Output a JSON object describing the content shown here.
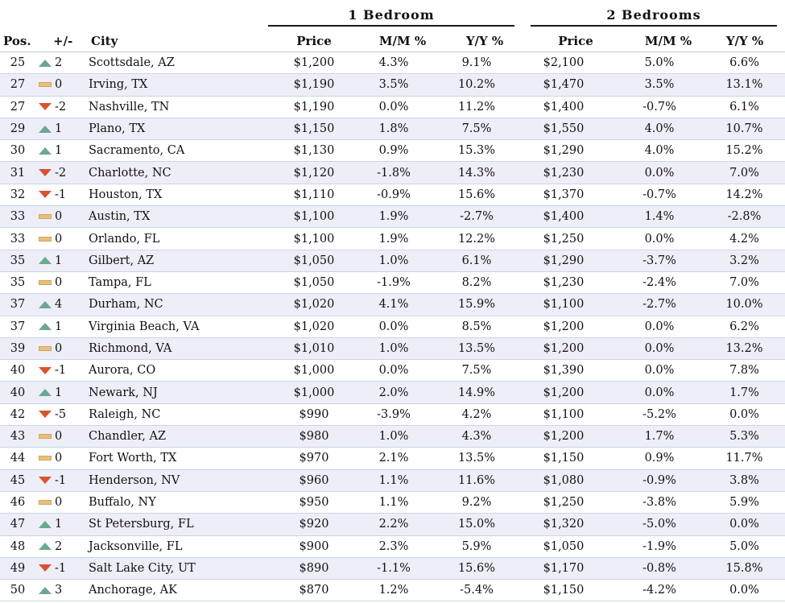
{
  "groups": {
    "one_bedroom": "1 Bedroom",
    "two_bedrooms": "2 Bedrooms"
  },
  "headers": {
    "pos": "Pos.",
    "change": "+/-",
    "city": "City",
    "price1": "Price",
    "mm1": "M/M %",
    "yy1": "Y/Y %",
    "price2": "Price",
    "mm2": "M/M %",
    "yy2": "Y/Y %"
  },
  "colors": {
    "up": "#6aa88f",
    "down": "#d9532f",
    "flat": "#e9bf7c",
    "alt_row": "#eeeef9"
  },
  "rows": [
    {
      "pos": "25",
      "trend": "up",
      "change": "2",
      "city": "Scottsdale, AZ",
      "price1": "$1,200",
      "mm1": "4.3%",
      "yy1": "9.1%",
      "price2": "$2,100",
      "mm2": "5.0%",
      "yy2": "6.6%"
    },
    {
      "pos": "27",
      "trend": "flat",
      "change": "0",
      "city": "Irving, TX",
      "price1": "$1,190",
      "mm1": "3.5%",
      "yy1": "10.2%",
      "price2": "$1,470",
      "mm2": "3.5%",
      "yy2": "13.1%"
    },
    {
      "pos": "27",
      "trend": "down",
      "change": "-2",
      "city": "Nashville, TN",
      "price1": "$1,190",
      "mm1": "0.0%",
      "yy1": "11.2%",
      "price2": "$1,400",
      "mm2": "-0.7%",
      "yy2": "6.1%"
    },
    {
      "pos": "29",
      "trend": "up",
      "change": "1",
      "city": "Plano, TX",
      "price1": "$1,150",
      "mm1": "1.8%",
      "yy1": "7.5%",
      "price2": "$1,550",
      "mm2": "4.0%",
      "yy2": "10.7%"
    },
    {
      "pos": "30",
      "trend": "up",
      "change": "1",
      "city": "Sacramento, CA",
      "price1": "$1,130",
      "mm1": "0.9%",
      "yy1": "15.3%",
      "price2": "$1,290",
      "mm2": "4.0%",
      "yy2": "15.2%"
    },
    {
      "pos": "31",
      "trend": "down",
      "change": "-2",
      "city": "Charlotte, NC",
      "price1": "$1,120",
      "mm1": "-1.8%",
      "yy1": "14.3%",
      "price2": "$1,230",
      "mm2": "0.0%",
      "yy2": "7.0%"
    },
    {
      "pos": "32",
      "trend": "down",
      "change": "-1",
      "city": "Houston, TX",
      "price1": "$1,110",
      "mm1": "-0.9%",
      "yy1": "15.6%",
      "price2": "$1,370",
      "mm2": "-0.7%",
      "yy2": "14.2%"
    },
    {
      "pos": "33",
      "trend": "flat",
      "change": "0",
      "city": "Austin, TX",
      "price1": "$1,100",
      "mm1": "1.9%",
      "yy1": "-2.7%",
      "price2": "$1,400",
      "mm2": "1.4%",
      "yy2": "-2.8%"
    },
    {
      "pos": "33",
      "trend": "flat",
      "change": "0",
      "city": "Orlando, FL",
      "price1": "$1,100",
      "mm1": "1.9%",
      "yy1": "12.2%",
      "price2": "$1,250",
      "mm2": "0.0%",
      "yy2": "4.2%"
    },
    {
      "pos": "35",
      "trend": "up",
      "change": "1",
      "city": "Gilbert, AZ",
      "price1": "$1,050",
      "mm1": "1.0%",
      "yy1": "6.1%",
      "price2": "$1,290",
      "mm2": "-3.7%",
      "yy2": "3.2%"
    },
    {
      "pos": "35",
      "trend": "flat",
      "change": "0",
      "city": "Tampa, FL",
      "price1": "$1,050",
      "mm1": "-1.9%",
      "yy1": "8.2%",
      "price2": "$1,230",
      "mm2": "-2.4%",
      "yy2": "7.0%"
    },
    {
      "pos": "37",
      "trend": "up",
      "change": "4",
      "city": "Durham, NC",
      "price1": "$1,020",
      "mm1": "4.1%",
      "yy1": "15.9%",
      "price2": "$1,100",
      "mm2": "-2.7%",
      "yy2": "10.0%"
    },
    {
      "pos": "37",
      "trend": "up",
      "change": "1",
      "city": "Virginia Beach, VA",
      "price1": "$1,020",
      "mm1": "0.0%",
      "yy1": "8.5%",
      "price2": "$1,200",
      "mm2": "0.0%",
      "yy2": "6.2%"
    },
    {
      "pos": "39",
      "trend": "flat",
      "change": "0",
      "city": "Richmond, VA",
      "price1": "$1,010",
      "mm1": "1.0%",
      "yy1": "13.5%",
      "price2": "$1,200",
      "mm2": "0.0%",
      "yy2": "13.2%"
    },
    {
      "pos": "40",
      "trend": "down",
      "change": "-1",
      "city": "Aurora, CO",
      "price1": "$1,000",
      "mm1": "0.0%",
      "yy1": "7.5%",
      "price2": "$1,390",
      "mm2": "0.0%",
      "yy2": "7.8%"
    },
    {
      "pos": "40",
      "trend": "up",
      "change": "1",
      "city": "Newark, NJ",
      "price1": "$1,000",
      "mm1": "2.0%",
      "yy1": "14.9%",
      "price2": "$1,200",
      "mm2": "0.0%",
      "yy2": "1.7%"
    },
    {
      "pos": "42",
      "trend": "down",
      "change": "-5",
      "city": "Raleigh, NC",
      "price1": "$990",
      "mm1": "-3.9%",
      "yy1": "4.2%",
      "price2": "$1,100",
      "mm2": "-5.2%",
      "yy2": "0.0%"
    },
    {
      "pos": "43",
      "trend": "flat",
      "change": "0",
      "city": "Chandler, AZ",
      "price1": "$980",
      "mm1": "1.0%",
      "yy1": "4.3%",
      "price2": "$1,200",
      "mm2": "1.7%",
      "yy2": "5.3%"
    },
    {
      "pos": "44",
      "trend": "flat",
      "change": "0",
      "city": "Fort Worth, TX",
      "price1": "$970",
      "mm1": "2.1%",
      "yy1": "13.5%",
      "price2": "$1,150",
      "mm2": "0.9%",
      "yy2": "11.7%"
    },
    {
      "pos": "45",
      "trend": "down",
      "change": "-1",
      "city": "Henderson, NV",
      "price1": "$960",
      "mm1": "1.1%",
      "yy1": "11.6%",
      "price2": "$1,080",
      "mm2": "-0.9%",
      "yy2": "3.8%"
    },
    {
      "pos": "46",
      "trend": "flat",
      "change": "0",
      "city": "Buffalo, NY",
      "price1": "$950",
      "mm1": "1.1%",
      "yy1": "9.2%",
      "price2": "$1,250",
      "mm2": "-3.8%",
      "yy2": "5.9%"
    },
    {
      "pos": "47",
      "trend": "up",
      "change": "1",
      "city": "St Petersburg, FL",
      "price1": "$920",
      "mm1": "2.2%",
      "yy1": "15.0%",
      "price2": "$1,320",
      "mm2": "-5.0%",
      "yy2": "0.0%"
    },
    {
      "pos": "48",
      "trend": "up",
      "change": "2",
      "city": "Jacksonville, FL",
      "price1": "$900",
      "mm1": "2.3%",
      "yy1": "5.9%",
      "price2": "$1,050",
      "mm2": "-1.9%",
      "yy2": "5.0%"
    },
    {
      "pos": "49",
      "trend": "down",
      "change": "-1",
      "city": "Salt Lake City, UT",
      "price1": "$890",
      "mm1": "-1.1%",
      "yy1": "15.6%",
      "price2": "$1,170",
      "mm2": "-0.8%",
      "yy2": "15.8%"
    },
    {
      "pos": "50",
      "trend": "up",
      "change": "3",
      "city": "Anchorage, AK",
      "price1": "$870",
      "mm1": "1.2%",
      "yy1": "-5.4%",
      "price2": "$1,150",
      "mm2": "-4.2%",
      "yy2": "0.0%"
    }
  ]
}
